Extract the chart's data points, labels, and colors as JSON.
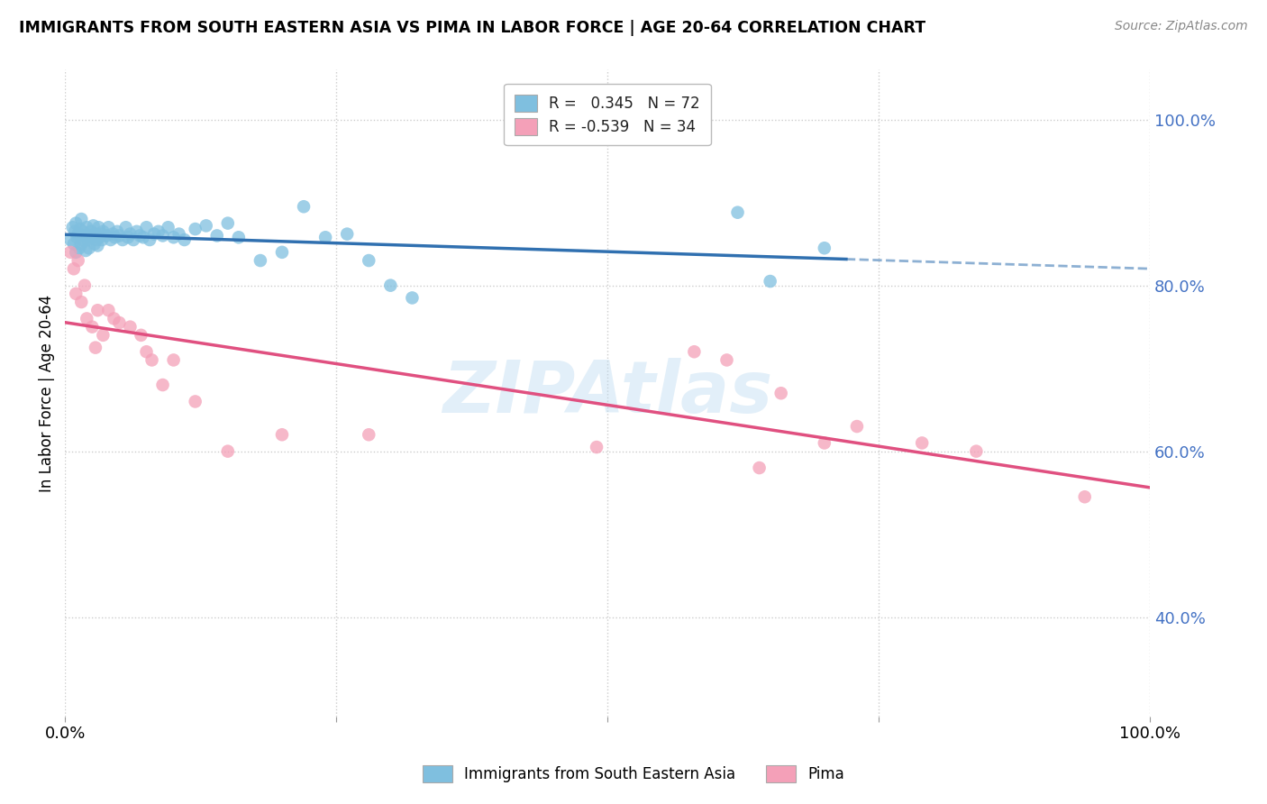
{
  "title": "IMMIGRANTS FROM SOUTH EASTERN ASIA VS PIMA IN LABOR FORCE | AGE 20-64 CORRELATION CHART",
  "source": "Source: ZipAtlas.com",
  "ylabel": "In Labor Force | Age 20-64",
  "xlim": [
    0.0,
    1.0
  ],
  "ylim": [
    0.28,
    1.06
  ],
  "yticks": [
    0.4,
    0.6,
    0.8,
    1.0
  ],
  "ytick_labels": [
    "40.0%",
    "60.0%",
    "80.0%",
    "100.0%"
  ],
  "xticks": [
    0.0,
    0.25,
    0.5,
    0.75,
    1.0
  ],
  "xtick_labels": [
    "0.0%",
    "",
    "",
    "",
    "100.0%"
  ],
  "legend_labels": [
    "Immigrants from South Eastern Asia",
    "Pima"
  ],
  "blue_R": 0.345,
  "blue_N": 72,
  "pink_R": -0.539,
  "pink_N": 34,
  "blue_color": "#7fbfdf",
  "pink_color": "#f4a0b8",
  "blue_line_color": "#3070b0",
  "pink_line_color": "#e05080",
  "watermark_text": "ZIPAtlas",
  "background_color": "#ffffff",
  "grid_color": "#cccccc",
  "blue_x": [
    0.005,
    0.007,
    0.008,
    0.009,
    0.01,
    0.01,
    0.011,
    0.012,
    0.013,
    0.014,
    0.015,
    0.015,
    0.016,
    0.017,
    0.018,
    0.019,
    0.02,
    0.021,
    0.022,
    0.023,
    0.024,
    0.025,
    0.026,
    0.027,
    0.028,
    0.029,
    0.03,
    0.031,
    0.032,
    0.033,
    0.034,
    0.035,
    0.038,
    0.04,
    0.042,
    0.044,
    0.046,
    0.048,
    0.05,
    0.053,
    0.056,
    0.058,
    0.06,
    0.063,
    0.066,
    0.069,
    0.072,
    0.075,
    0.078,
    0.082,
    0.086,
    0.09,
    0.095,
    0.1,
    0.105,
    0.11,
    0.12,
    0.13,
    0.14,
    0.15,
    0.16,
    0.18,
    0.2,
    0.22,
    0.24,
    0.26,
    0.28,
    0.3,
    0.32,
    0.62,
    0.65,
    0.7
  ],
  "blue_y": [
    0.855,
    0.87,
    0.85,
    0.865,
    0.84,
    0.875,
    0.858,
    0.862,
    0.845,
    0.868,
    0.85,
    0.88,
    0.865,
    0.855,
    0.86,
    0.842,
    0.87,
    0.855,
    0.845,
    0.86,
    0.865,
    0.858,
    0.872,
    0.85,
    0.862,
    0.855,
    0.848,
    0.87,
    0.858,
    0.862,
    0.855,
    0.865,
    0.86,
    0.87,
    0.855,
    0.862,
    0.858,
    0.865,
    0.86,
    0.855,
    0.87,
    0.858,
    0.862,
    0.855,
    0.865,
    0.86,
    0.858,
    0.87,
    0.855,
    0.862,
    0.865,
    0.86,
    0.87,
    0.858,
    0.862,
    0.855,
    0.868,
    0.872,
    0.86,
    0.875,
    0.858,
    0.83,
    0.84,
    0.895,
    0.858,
    0.862,
    0.83,
    0.8,
    0.785,
    0.888,
    0.805,
    0.845
  ],
  "pink_x": [
    0.005,
    0.008,
    0.01,
    0.012,
    0.015,
    0.018,
    0.02,
    0.025,
    0.028,
    0.03,
    0.035,
    0.04,
    0.045,
    0.05,
    0.06,
    0.07,
    0.075,
    0.08,
    0.09,
    0.1,
    0.12,
    0.15,
    0.2,
    0.28,
    0.49,
    0.58,
    0.61,
    0.64,
    0.66,
    0.7,
    0.73,
    0.79,
    0.84,
    0.94
  ],
  "pink_y": [
    0.84,
    0.82,
    0.79,
    0.83,
    0.78,
    0.8,
    0.76,
    0.75,
    0.725,
    0.77,
    0.74,
    0.77,
    0.76,
    0.755,
    0.75,
    0.74,
    0.72,
    0.71,
    0.68,
    0.71,
    0.66,
    0.6,
    0.62,
    0.62,
    0.605,
    0.72,
    0.71,
    0.58,
    0.67,
    0.61,
    0.63,
    0.61,
    0.6,
    0.545
  ]
}
